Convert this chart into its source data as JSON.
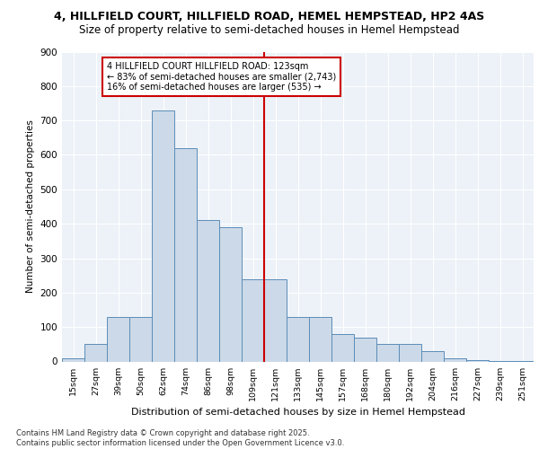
{
  "title1": "4, HILLFIELD COURT, HILLFIELD ROAD, HEMEL HEMPSTEAD, HP2 4AS",
  "title2": "Size of property relative to semi-detached houses in Hemel Hempstead",
  "xlabel": "Distribution of semi-detached houses by size in Hemel Hempstead",
  "ylabel": "Number of semi-detached properties",
  "categories": [
    "15sqm",
    "27sqm",
    "39sqm",
    "50sqm",
    "62sqm",
    "74sqm",
    "86sqm",
    "98sqm",
    "109sqm",
    "121sqm",
    "133sqm",
    "145sqm",
    "157sqm",
    "168sqm",
    "180sqm",
    "192sqm",
    "204sqm",
    "216sqm",
    "227sqm",
    "239sqm",
    "251sqm"
  ],
  "values": [
    10,
    50,
    130,
    130,
    730,
    620,
    410,
    390,
    240,
    240,
    130,
    130,
    80,
    70,
    50,
    50,
    30,
    10,
    5,
    2,
    2
  ],
  "bar_color": "#ccd9e8",
  "bar_edge_color": "#5b8db8",
  "vline_color": "#cc0000",
  "annotation_title": "4 HILLFIELD COURT HILLFIELD ROAD: 123sqm",
  "annotation_line1": "← 83% of semi-detached houses are smaller (2,743)",
  "annotation_line2": "16% of semi-detached houses are larger (535) →",
  "annotation_box_color": "#cc0000",
  "ylim": [
    0,
    900
  ],
  "yticks": [
    0,
    100,
    200,
    300,
    400,
    500,
    600,
    700,
    800,
    900
  ],
  "footer1": "Contains HM Land Registry data © Crown copyright and database right 2025.",
  "footer2": "Contains public sector information licensed under the Open Government Licence v3.0.",
  "bg_color": "#edf2f8",
  "grid_color": "#ffffff"
}
